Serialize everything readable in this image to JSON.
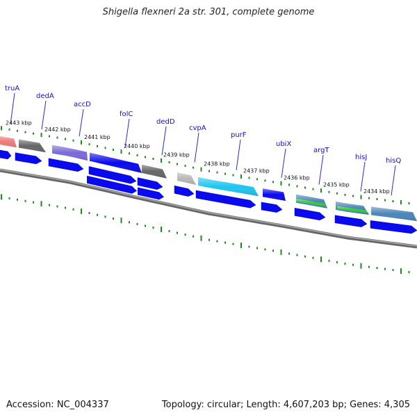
{
  "title": "Shigella flexneri 2a str. 301, complete genome",
  "footer": {
    "accession": "Accession: NC_004337",
    "stats": "Topology: circular; Length: 4,607,203 bp; Genes: 4,305"
  },
  "colors": {
    "cds": "#0a0aee",
    "cds_gray": "#666666",
    "light_gray": "#b8b8b8",
    "cyan": "#1fc6f0",
    "purple": "#7a6ad8",
    "red": "#f07a7a",
    "steel": "#4a86b8",
    "green": "#33cc33",
    "ticks": "#1a8a1a",
    "backbone": "#888888",
    "gene_label": "#1010c0"
  },
  "kbp_ticks": [
    "2443 kbp",
    "2442 kbp",
    "2441 kbp",
    "2440 kbp",
    "2439 kbp",
    "2438 kbp",
    "2437 kbp",
    "2436 kbp",
    "2435 kbp",
    "2434 kbp"
  ],
  "gene_labels": [
    "truA",
    "dedA",
    "accD",
    "folC",
    "dedD",
    "cvpA",
    "purF",
    "ubiX",
    "argT",
    "hisJ",
    "hisQ"
  ],
  "features": [
    {
      "type": "outer",
      "from": 0,
      "to": 0.04,
      "color": "red"
    },
    {
      "type": "outer",
      "from": 0.045,
      "to": 0.11,
      "color": "cds_gray"
    },
    {
      "type": "outer",
      "from": 0.125,
      "to": 0.21,
      "color": "purple"
    },
    {
      "type": "outer",
      "from": 0.215,
      "to": 0.34,
      "color": "cds"
    },
    {
      "type": "outer",
      "from": 0.34,
      "to": 0.4,
      "color": "cds_gray"
    },
    {
      "type": "outer",
      "from": 0.425,
      "to": 0.47,
      "color": "light_gray"
    },
    {
      "type": "outer",
      "from": 0.475,
      "to": 0.62,
      "color": "cyan"
    },
    {
      "type": "outer",
      "from": 0.63,
      "to": 0.685,
      "color": "cds"
    },
    {
      "type": "outer",
      "from": 0.71,
      "to": 0.785,
      "color": "steel"
    },
    {
      "type": "outer",
      "from": 0.805,
      "to": 0.885,
      "color": "steel"
    },
    {
      "type": "outer",
      "from": 0.89,
      "to": 1.0,
      "color": "steel"
    }
  ]
}
